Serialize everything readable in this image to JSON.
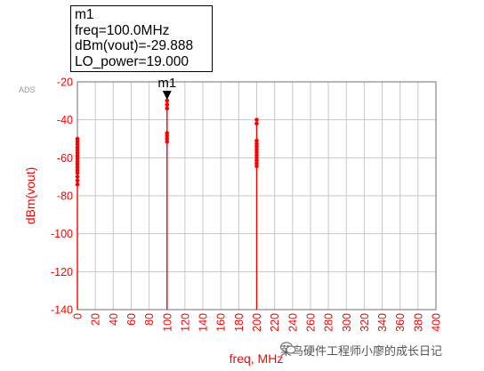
{
  "marker": {
    "name": "m1",
    "freq_line": "freq=100.0MHz",
    "dbm_line": "dBm(vout)=-29.888",
    "lo_line": "LO_power=19.000",
    "x": 100,
    "y": -29.888
  },
  "ads_label": "ADS",
  "watermark": "菜鸟硬件工程师小廖的成长日记",
  "colors": {
    "trace": "#ff0000",
    "axis_text": "#ff0000",
    "grid": "#c8c8c8",
    "marker": "#000000"
  },
  "chart_data": {
    "type": "line",
    "title": "",
    "xlabel": "freq, MHz",
    "ylabel": "dBm(vout)",
    "xlim": [
      0,
      400
    ],
    "ylim": [
      -140,
      -20
    ],
    "grid": true,
    "x_ticks": [
      0,
      20,
      40,
      60,
      80,
      100,
      120,
      140,
      160,
      180,
      200,
      220,
      240,
      260,
      280,
      300,
      320,
      340,
      360,
      380,
      400
    ],
    "y_ticks": [
      -20,
      -40,
      -60,
      -80,
      -100,
      -120,
      -140
    ],
    "series": [
      {
        "lines": [
          {
            "x": 0,
            "top": -50
          },
          {
            "x": 100,
            "top": -29.888
          },
          {
            "x": 200,
            "top": -40
          }
        ],
        "points": [
          {
            "x": 0,
            "y": -50
          },
          {
            "x": 0,
            "y": -51.5
          },
          {
            "x": 0,
            "y": -53
          },
          {
            "x": 0,
            "y": -54.5
          },
          {
            "x": 0,
            "y": -56
          },
          {
            "x": 0,
            "y": -57.5
          },
          {
            "x": 0,
            "y": -59
          },
          {
            "x": 0,
            "y": -60.5
          },
          {
            "x": 0,
            "y": -62
          },
          {
            "x": 0,
            "y": -63.5
          },
          {
            "x": 0,
            "y": -65
          },
          {
            "x": 0,
            "y": -66.5
          },
          {
            "x": 0,
            "y": -68
          },
          {
            "x": 0,
            "y": -70
          },
          {
            "x": 0,
            "y": -72
          },
          {
            "x": 0,
            "y": -74
          },
          {
            "x": 100,
            "y": -29.888
          },
          {
            "x": 100,
            "y": -32
          },
          {
            "x": 100,
            "y": -34
          },
          {
            "x": 100,
            "y": -47
          },
          {
            "x": 100,
            "y": -48.5
          },
          {
            "x": 100,
            "y": -50
          },
          {
            "x": 100,
            "y": -51.5
          },
          {
            "x": 200,
            "y": -40
          },
          {
            "x": 200,
            "y": -42
          },
          {
            "x": 200,
            "y": -51
          },
          {
            "x": 200,
            "y": -52.5
          },
          {
            "x": 200,
            "y": -54
          },
          {
            "x": 200,
            "y": -55.5
          },
          {
            "x": 200,
            "y": -57
          },
          {
            "x": 200,
            "y": -58.5
          },
          {
            "x": 200,
            "y": -60
          },
          {
            "x": 200,
            "y": -61.5
          },
          {
            "x": 200,
            "y": -63
          },
          {
            "x": 200,
            "y": -64.5
          }
        ]
      }
    ]
  }
}
